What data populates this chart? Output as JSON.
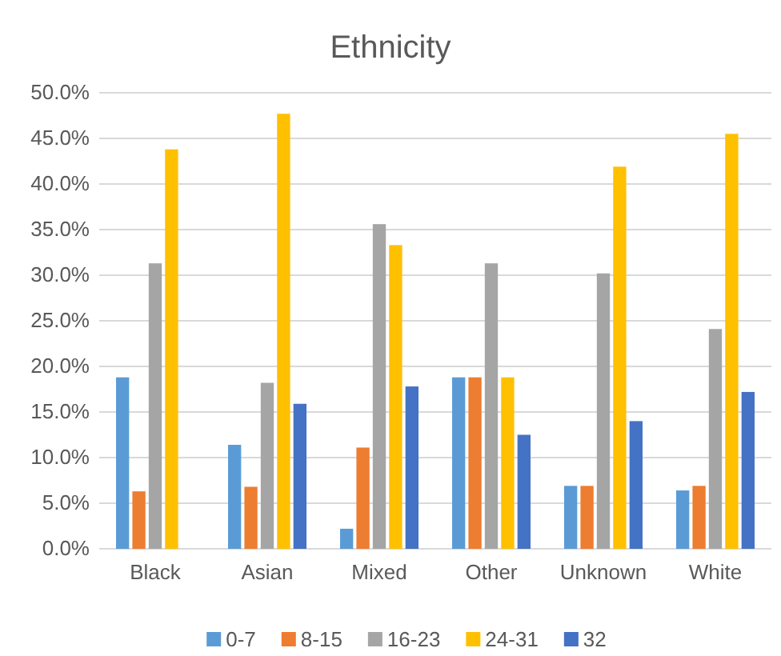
{
  "chart_data": {
    "type": "bar",
    "title": "Ethnicity",
    "categories": [
      "Black",
      "Asian",
      "Mixed",
      "Other",
      "Unknown",
      "White"
    ],
    "series": [
      {
        "name": "0-7",
        "color": "#5b9bd5",
        "values": [
          18.8,
          11.4,
          2.2,
          18.8,
          6.9,
          6.4
        ]
      },
      {
        "name": "8-15",
        "color": "#ed7d31",
        "values": [
          6.3,
          6.8,
          11.1,
          18.8,
          6.9,
          6.9
        ]
      },
      {
        "name": "16-23",
        "color": "#a5a5a5",
        "values": [
          31.3,
          18.2,
          35.6,
          31.3,
          30.2,
          24.1
        ]
      },
      {
        "name": "24-31",
        "color": "#ffc000",
        "values": [
          43.8,
          47.7,
          33.3,
          18.8,
          41.9,
          45.5
        ]
      },
      {
        "name": "32",
        "color": "#4472c4",
        "values": [
          0,
          15.9,
          17.8,
          12.5,
          14.0,
          17.2
        ]
      }
    ],
    "ylim": [
      0,
      50
    ],
    "yticks": [
      {
        "value": 0,
        "label": "0.0%"
      },
      {
        "value": 5,
        "label": "5.0%"
      },
      {
        "value": 10,
        "label": "10.0%"
      },
      {
        "value": 15,
        "label": "15.0%"
      },
      {
        "value": 20,
        "label": "20.0%"
      },
      {
        "value": 25,
        "label": "25.0%"
      },
      {
        "value": 30,
        "label": "30.0%"
      },
      {
        "value": 35,
        "label": "35.0%"
      },
      {
        "value": 40,
        "label": "40.0%"
      },
      {
        "value": 45,
        "label": "45.0%"
      },
      {
        "value": 50,
        "label": "50.0%"
      }
    ],
    "grid": "y",
    "legend": "bottom"
  }
}
